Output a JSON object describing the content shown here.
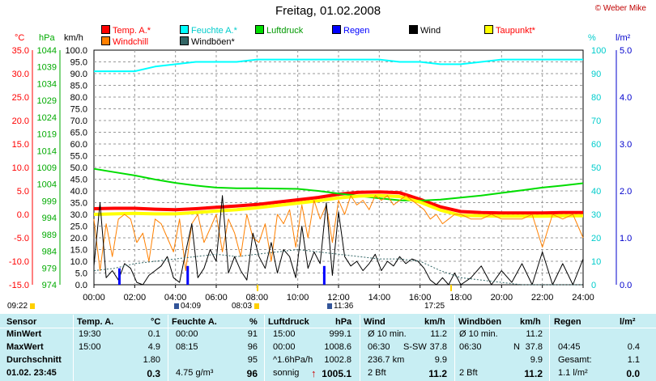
{
  "header": {
    "title": "Freitag, 01.02.2008",
    "copyright": "© Weber Mike"
  },
  "legend": [
    {
      "label": "Temp. A.*",
      "color": "#ff0000"
    },
    {
      "label": "Feuchte A.*",
      "color": "#00ffff"
    },
    {
      "label": "Luftdruck",
      "color": "#00dd00"
    },
    {
      "label": "Regen",
      "color": "#0000ff"
    },
    {
      "label": "Wind",
      "color": "#000000"
    },
    {
      "label": "Taupunkt*",
      "color": "#ffff00"
    },
    {
      "label": "Windchill",
      "color": "#ff8000"
    },
    {
      "label": "Windböen*",
      "color": "#336666"
    }
  ],
  "axis_units": {
    "temp": "°C",
    "pressure": "hPa",
    "wind": "km/h",
    "humidity": "%",
    "rain": "l/m²"
  },
  "chart_data": {
    "type": "line",
    "title": "Freitag, 01.02.2008",
    "x_ticks": [
      "00:00",
      "02:00",
      "04:00",
      "06:00",
      "08:00",
      "10:00",
      "12:00",
      "14:00",
      "16:00",
      "18:00",
      "20:00",
      "22:00",
      "24:00"
    ],
    "x_range_hours": [
      0,
      24
    ],
    "axes": {
      "temp_c": {
        "min": -15,
        "max": 35,
        "ticks": [
          "35.0",
          "30.0",
          "25.0",
          "20.0",
          "15.0",
          "10.0",
          "5.0",
          "0.0",
          "-5.0",
          "-10.0",
          "-15.0"
        ]
      },
      "pressure_hpa": {
        "min": 974,
        "max": 1044,
        "ticks": [
          "1044",
          "1039",
          "1034",
          "1029",
          "1024",
          "1019",
          "1014",
          "1009",
          "1004",
          "999",
          "994",
          "989",
          "984",
          "979",
          "974"
        ]
      },
      "wind_kmh": {
        "min": 0,
        "max": 100,
        "ticks": [
          "100.0",
          "95.0",
          "90.0",
          "85.0",
          "80.0",
          "75.0",
          "70.0",
          "65.0",
          "60.0",
          "55.0",
          "50.0",
          "45.0",
          "40.0",
          "35.0",
          "30.0",
          "25.0",
          "20.0",
          "15.0",
          "10.0",
          "5.0",
          "0.0"
        ]
      },
      "humidity_pct": {
        "min": 0,
        "max": 100,
        "ticks": [
          "100",
          "90",
          "80",
          "70",
          "60",
          "50",
          "40",
          "30",
          "20",
          "10",
          "0"
        ]
      },
      "rain_lm2": {
        "min": 0,
        "max": 5,
        "ticks": [
          "5.0",
          "4.0",
          "3.0",
          "2.0",
          "1.0",
          "0.0"
        ]
      }
    },
    "series": [
      {
        "name": "Temp. A.*",
        "axis": "temp_c",
        "color": "#ff0000",
        "width": 4,
        "x": [
          0,
          1,
          2,
          3,
          4,
          5,
          6,
          7,
          8,
          9,
          10,
          11,
          12,
          13,
          14,
          15,
          16,
          17,
          18,
          19,
          20,
          21,
          22,
          23,
          24
        ],
        "y": [
          1.2,
          1.3,
          1.3,
          1.1,
          1.0,
          1.2,
          1.5,
          1.8,
          2.1,
          2.6,
          3.1,
          3.6,
          4.3,
          4.7,
          4.8,
          4.6,
          3.2,
          1.6,
          0.6,
          0.4,
          0.3,
          0.3,
          0.3,
          0.4,
          0.4
        ]
      },
      {
        "name": "Feuchte A.*",
        "axis": "humidity_pct",
        "color": "#00ffff",
        "width": 2,
        "x": [
          0,
          1,
          2,
          3,
          4,
          5,
          6,
          7,
          8,
          9,
          10,
          11,
          12,
          13,
          14,
          15,
          16,
          17,
          18,
          19,
          20,
          21,
          22,
          23,
          24
        ],
        "y": [
          91,
          91,
          91,
          93,
          94,
          95,
          95,
          95,
          96,
          96,
          96,
          96,
          96,
          96,
          96,
          95,
          95,
          94,
          94,
          95,
          96,
          96,
          96,
          96,
          96
        ]
      },
      {
        "name": "Luftdruck",
        "axis": "pressure_hpa",
        "color": "#00dd00",
        "width": 2,
        "x": [
          0,
          1,
          2,
          3,
          4,
          5,
          6,
          7,
          8,
          9,
          10,
          11,
          12,
          13,
          14,
          15,
          16,
          17,
          18,
          19,
          20,
          21,
          22,
          23,
          24
        ],
        "y": [
          1008.6,
          1007.6,
          1006.6,
          1005.4,
          1004.4,
          1003.6,
          1003.0,
          1002.8,
          1002.8,
          1002.7,
          1002.6,
          1002.0,
          1001.2,
          1000.5,
          999.8,
          999.2,
          999.1,
          999.4,
          1000.0,
          1000.6,
          1001.4,
          1002.2,
          1003.0,
          1003.6,
          1004.3
        ]
      },
      {
        "name": "Taupunkt*",
        "axis": "temp_c",
        "color": "#ffff00",
        "width": 4,
        "x": [
          0,
          1,
          2,
          3,
          4,
          5,
          6,
          7,
          8,
          9,
          10,
          11,
          12,
          13,
          14,
          15,
          16,
          17,
          18,
          19,
          20,
          21,
          22,
          23,
          24
        ],
        "y": [
          0.0,
          0.1,
          0.2,
          0.1,
          0.1,
          0.4,
          0.7,
          1.0,
          1.4,
          1.9,
          2.4,
          2.9,
          3.5,
          3.9,
          4.0,
          3.8,
          2.6,
          0.9,
          -0.2,
          -0.3,
          -0.4,
          -0.4,
          -0.4,
          -0.3,
          -0.3
        ]
      },
      {
        "name": "Windchill",
        "axis": "temp_c",
        "color": "#ff8000",
        "width": 1,
        "x": [
          0,
          0.3,
          0.6,
          0.9,
          1.2,
          1.5,
          1.8,
          2.1,
          2.4,
          2.7,
          3.0,
          3.3,
          3.6,
          3.9,
          4.2,
          4.5,
          4.8,
          5.1,
          5.4,
          5.7,
          6.0,
          6.3,
          6.6,
          6.9,
          7.2,
          7.5,
          7.8,
          8.1,
          8.4,
          8.7,
          9.0,
          9.3,
          9.6,
          9.9,
          10.2,
          10.5,
          10.8,
          11.1,
          11.4,
          11.7,
          12.0,
          12.3,
          12.6,
          12.9,
          13.2,
          13.5,
          13.8,
          14.1,
          14.4,
          14.7,
          15.0,
          15.3,
          15.6,
          15.9,
          16.2,
          16.5,
          16.8,
          17.1,
          17.4,
          17.7,
          18.0,
          18.5,
          19.0,
          19.5,
          20.0,
          20.5,
          21.0,
          21.5,
          22.0,
          22.5,
          23.0,
          23.5,
          24.0
        ],
        "y": [
          -1,
          -12,
          -2,
          -9,
          -1,
          0,
          -1,
          -6,
          -4,
          -10,
          -1,
          -2,
          -5,
          -8,
          -1,
          -12,
          -2,
          0,
          -6,
          -3,
          0,
          -8,
          -1,
          -4,
          -9,
          0,
          -5,
          -6,
          -2,
          -10,
          0,
          -2,
          1,
          -7,
          2,
          -5,
          3,
          -1,
          2,
          -6,
          3,
          0,
          4,
          2,
          3,
          1,
          4,
          3,
          4,
          2,
          3,
          4,
          3,
          2,
          1,
          -1,
          0,
          -2,
          -1,
          0,
          0,
          -1,
          -1,
          0,
          -1,
          -1,
          -1,
          0,
          -7,
          0,
          -1,
          0,
          -5
        ]
      },
      {
        "name": "Wind",
        "axis": "wind_kmh",
        "color": "#000000",
        "width": 1,
        "x": [
          0,
          0.3,
          0.6,
          0.9,
          1.2,
          1.5,
          1.8,
          2.1,
          2.4,
          2.7,
          3.0,
          3.3,
          3.6,
          3.9,
          4.2,
          4.5,
          4.8,
          5.1,
          5.4,
          5.7,
          6.0,
          6.3,
          6.6,
          6.9,
          7.2,
          7.5,
          7.8,
          8.1,
          8.4,
          8.7,
          9.0,
          9.3,
          9.6,
          9.9,
          10.2,
          10.5,
          10.8,
          11.1,
          11.4,
          11.7,
          12.0,
          12.3,
          12.6,
          12.9,
          13.2,
          13.5,
          13.8,
          14.1,
          14.4,
          14.7,
          15.0,
          15.3,
          15.6,
          15.9,
          16.2,
          16.5,
          16.8,
          17.1,
          17.4,
          17.7,
          18.0,
          18.5,
          19.0,
          19.5,
          20.0,
          20.5,
          21.0,
          21.5,
          22.0,
          22.5,
          23.0,
          23.5,
          24.0
        ],
        "y": [
          8,
          35,
          3,
          6,
          2,
          9,
          7,
          1,
          0,
          4,
          6,
          8,
          12,
          3,
          1,
          14,
          26,
          3,
          7,
          15,
          10,
          38,
          5,
          12,
          6,
          2,
          22,
          12,
          7,
          18,
          5,
          15,
          12,
          3,
          25,
          7,
          14,
          9,
          35,
          4,
          31,
          12,
          8,
          10,
          6,
          9,
          13,
          6,
          10,
          8,
          12,
          9,
          11,
          10,
          7,
          2,
          0,
          3,
          0,
          5,
          0,
          3,
          8,
          0,
          6,
          1,
          9,
          0,
          14,
          0,
          9,
          0,
          11
        ]
      },
      {
        "name": "Windböen*",
        "axis": "wind_kmh",
        "color": "#336666",
        "width": 1,
        "dash": true,
        "x": [
          0,
          1,
          2,
          3,
          4,
          5,
          6,
          7,
          8,
          9,
          10,
          11,
          12,
          13,
          14,
          15,
          16,
          17,
          18,
          19,
          20,
          21,
          22,
          23,
          24
        ],
        "y": [
          6,
          7,
          9,
          10,
          11,
          12,
          13,
          12,
          13,
          14,
          15,
          14,
          13,
          12,
          11,
          11,
          10,
          6,
          3,
          2,
          1,
          0,
          0,
          0,
          0
        ]
      }
    ],
    "rain_bars": [
      {
        "x": 1.25,
        "value": 0.35
      },
      {
        "x": 4.6,
        "value": 0.4
      },
      {
        "x": 11.3,
        "value": 0.4
      }
    ]
  },
  "events": [
    {
      "label": "09:22"
    },
    {
      "label": "04:09"
    },
    {
      "label": "08:03"
    },
    {
      "label": "11:36"
    },
    {
      "label": "17:25"
    }
  ],
  "table": {
    "headers": {
      "sensor": "Sensor",
      "temp": "Temp. A.",
      "temp_unit": "°C",
      "hum": "Feuchte A.",
      "hum_unit": "%",
      "press": "Luftdruck",
      "press_unit": "hPa",
      "wind": "Wind",
      "wind_unit": "km/h",
      "gust": "Windböen",
      "gust_unit": "km/h",
      "rain": "Regen",
      "rain_unit": "l/m²"
    },
    "rows": [
      {
        "label": "MinWert",
        "temp_t": "19:30",
        "temp_v": "0.1",
        "hum_t": "00:00",
        "hum_v": "91",
        "press_t": "15:00",
        "press_v": "999.1",
        "wind_t": "Ø 10 min.",
        "wind_v": "11.2",
        "gust_t": "Ø 10 min.",
        "gust_v": "11.2",
        "rain_t": "",
        "rain_v": ""
      },
      {
        "label": "MaxWert",
        "temp_t": "15:00",
        "temp_v": "4.9",
        "hum_t": "08:15",
        "hum_v": "96",
        "press_t": "00:00",
        "press_v": "1008.6",
        "wind_t": "06:30",
        "wind_m": "S-SW",
        "wind_v": "37.8",
        "gust_t": "06:30",
        "gust_m": "N",
        "gust_v": "37.8",
        "rain_t": "04:45",
        "rain_v": "0.4"
      },
      {
        "label": "Durchschnitt",
        "temp_t": "",
        "temp_v": "1.80",
        "hum_t": "",
        "hum_v": "95",
        "press_t": "^1.6hPa/h",
        "press_v": "1002.8",
        "wind_t": "236.7 km",
        "wind_v": "9.9",
        "gust_t": "",
        "gust_v": "9.9",
        "rain_t": "Gesamt:",
        "rain_v": "1.1"
      },
      {
        "label": "01.02. 23:45",
        "temp_t": "",
        "temp_v": "0.3",
        "hum_t": "4.75 g/m³",
        "hum_v": "96",
        "press_t": "sonnig",
        "press_arrow": "↑",
        "press_v": "1005.1",
        "wind_t": "2 Bft",
        "wind_v": "11.2",
        "gust_t": "2 Bft",
        "gust_v": "11.2",
        "rain_t": "1.1 l/m²",
        "rain_v": "0.0"
      }
    ]
  }
}
